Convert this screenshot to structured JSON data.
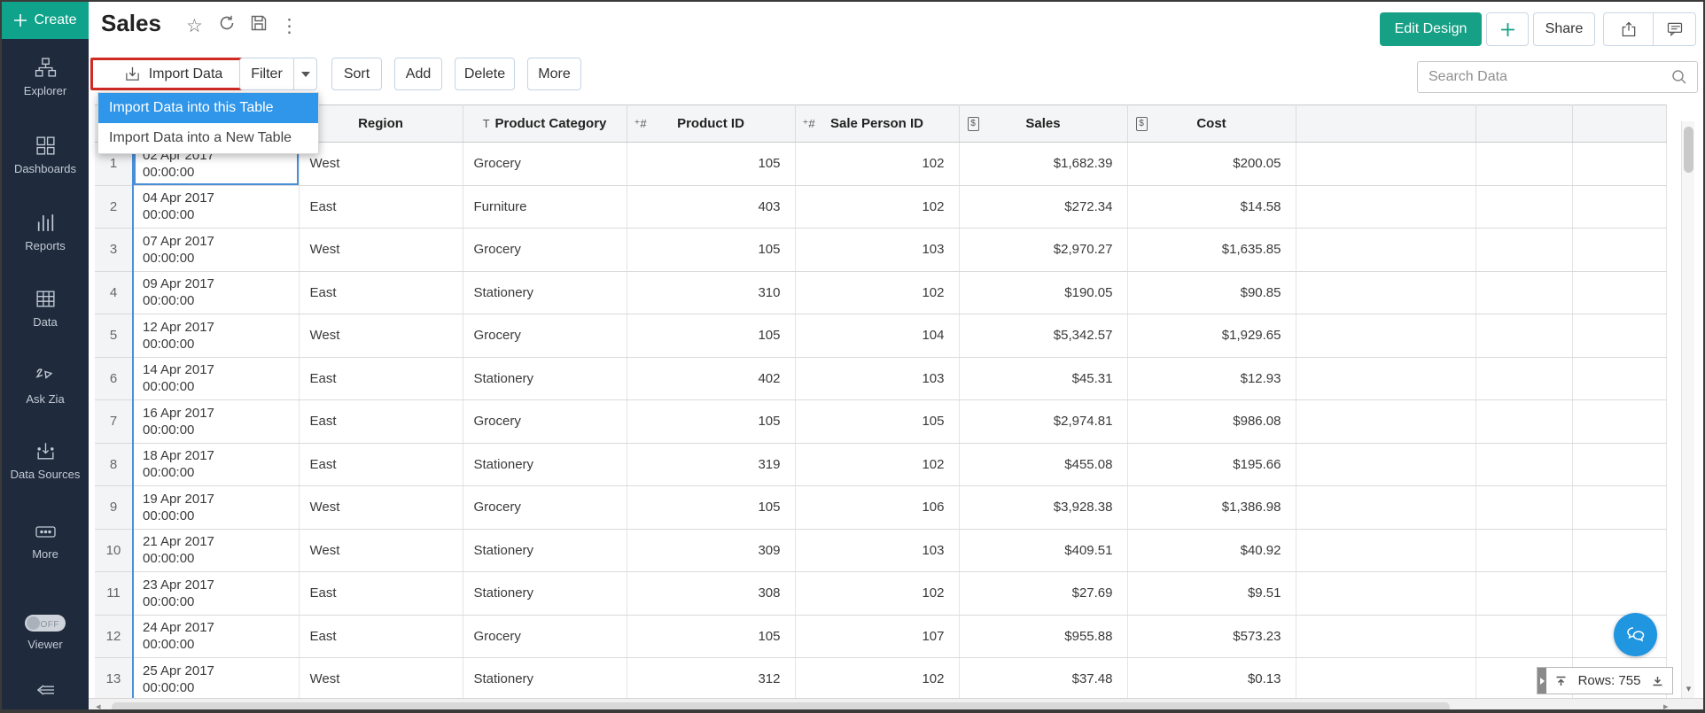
{
  "colors": {
    "accent_teal": "#0ea38a",
    "edit_design_green": "#16a085",
    "menu_blue": "#3096ea",
    "selection_blue": "#4a90d9",
    "annotation_red": "#cf2b24",
    "sidebar_bg": "#1f2a3c",
    "chat_blue": "#2095e0"
  },
  "icon_glyphs": {
    "star": "☆",
    "more_vertical": "⋮",
    "caret_small": "▾",
    "left_arrow": "◂",
    "right_arrow": "▸"
  },
  "sidebar": {
    "create": {
      "label": "Create"
    },
    "items": [
      {
        "label": "Explorer"
      },
      {
        "label": "Dashboards"
      },
      {
        "label": "Reports"
      },
      {
        "label": "Data"
      },
      {
        "label": "Ask Zia"
      },
      {
        "label": "Data Sources"
      },
      {
        "label": "More"
      }
    ],
    "viewer": {
      "label": "Viewer",
      "toggle_state": "OFF"
    }
  },
  "titlebar": {
    "title": "Sales",
    "edit_design": "Edit Design",
    "share": "Share"
  },
  "toolbar": {
    "import": "Import Data",
    "filter": "Filter",
    "sort": "Sort",
    "add": "Add",
    "delete": "Delete",
    "more": "More",
    "search_placeholder": "Search Data"
  },
  "import_menu": {
    "items": [
      "Import Data into this Table",
      "Import Data into a New Table"
    ],
    "active_index": 0
  },
  "table": {
    "columns": [
      {
        "label": "",
        "type": "rownum"
      },
      {
        "label": "",
        "type": "date"
      },
      {
        "label": "Region",
        "type": "text"
      },
      {
        "label": "Product Category",
        "type": "text",
        "type_glyph": "T"
      },
      {
        "label": "Product ID",
        "type": "number",
        "type_glyph": "⁺#"
      },
      {
        "label": "Sale Person ID",
        "type": "number",
        "type_glyph": "⁺#"
      },
      {
        "label": "Sales",
        "type": "currency",
        "type_glyph": "$"
      },
      {
        "label": "Cost",
        "type": "currency",
        "type_glyph": "$"
      }
    ],
    "rows": [
      {
        "n": "1",
        "date": "02 Apr 2017",
        "time": "00:00:00",
        "region": "West",
        "category": "Grocery",
        "product_id": "105",
        "sale_person_id": "102",
        "sales": "$1,682.39",
        "cost": "$200.05",
        "selected": true
      },
      {
        "n": "2",
        "date": "04 Apr 2017",
        "time": "00:00:00",
        "region": "East",
        "category": "Furniture",
        "product_id": "403",
        "sale_person_id": "102",
        "sales": "$272.34",
        "cost": "$14.58"
      },
      {
        "n": "3",
        "date": "07 Apr 2017",
        "time": "00:00:00",
        "region": "West",
        "category": "Grocery",
        "product_id": "105",
        "sale_person_id": "103",
        "sales": "$2,970.27",
        "cost": "$1,635.85"
      },
      {
        "n": "4",
        "date": "09 Apr 2017",
        "time": "00:00:00",
        "region": "East",
        "category": "Stationery",
        "product_id": "310",
        "sale_person_id": "102",
        "sales": "$190.05",
        "cost": "$90.85"
      },
      {
        "n": "5",
        "date": "12 Apr 2017",
        "time": "00:00:00",
        "region": "West",
        "category": "Grocery",
        "product_id": "105",
        "sale_person_id": "104",
        "sales": "$5,342.57",
        "cost": "$1,929.65"
      },
      {
        "n": "6",
        "date": "14 Apr 2017",
        "time": "00:00:00",
        "region": "East",
        "category": "Stationery",
        "product_id": "402",
        "sale_person_id": "103",
        "sales": "$45.31",
        "cost": "$12.93"
      },
      {
        "n": "7",
        "date": "16 Apr 2017",
        "time": "00:00:00",
        "region": "East",
        "category": "Grocery",
        "product_id": "105",
        "sale_person_id": "105",
        "sales": "$2,974.81",
        "cost": "$986.08"
      },
      {
        "n": "8",
        "date": "18 Apr 2017",
        "time": "00:00:00",
        "region": "East",
        "category": "Stationery",
        "product_id": "319",
        "sale_person_id": "102",
        "sales": "$455.08",
        "cost": "$195.66"
      },
      {
        "n": "9",
        "date": "19 Apr 2017",
        "time": "00:00:00",
        "region": "West",
        "category": "Grocery",
        "product_id": "105",
        "sale_person_id": "106",
        "sales": "$3,928.38",
        "cost": "$1,386.98"
      },
      {
        "n": "10",
        "date": "21 Apr 2017",
        "time": "00:00:00",
        "region": "West",
        "category": "Stationery",
        "product_id": "309",
        "sale_person_id": "103",
        "sales": "$409.51",
        "cost": "$40.92"
      },
      {
        "n": "11",
        "date": "23 Apr 2017",
        "time": "00:00:00",
        "region": "East",
        "category": "Stationery",
        "product_id": "308",
        "sale_person_id": "102",
        "sales": "$27.69",
        "cost": "$9.51"
      },
      {
        "n": "12",
        "date": "24 Apr 2017",
        "time": "00:00:00",
        "region": "East",
        "category": "Grocery",
        "product_id": "105",
        "sale_person_id": "107",
        "sales": "$955.88",
        "cost": "$573.23"
      },
      {
        "n": "13",
        "date": "25 Apr 2017",
        "time": "00:00:00",
        "region": "West",
        "category": "Stationery",
        "product_id": "312",
        "sale_person_id": "102",
        "sales": "$37.48",
        "cost": "$0.13"
      }
    ]
  },
  "status": {
    "rows_count": "Rows: 755"
  }
}
